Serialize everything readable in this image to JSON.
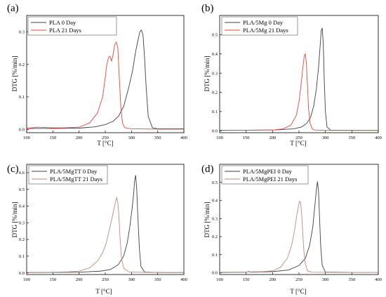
{
  "chart_data": [
    {
      "type": "line",
      "panel_label": "(a)",
      "xlabel": "T [°C]",
      "ylabel": "DTG [%/min]",
      "xlim": [
        100,
        400
      ],
      "ylim": [
        -0.01,
        0.35
      ],
      "xticks": [
        100,
        150,
        200,
        250,
        300,
        350,
        400
      ],
      "yticks": [
        0.0,
        0.1,
        0.2,
        0.3
      ],
      "legend_position": "top-left",
      "series": [
        {
          "name": "PLA 0 Day",
          "color": "#404040",
          "x": [
            100,
            150,
            200,
            230,
            250,
            265,
            275,
            285,
            295,
            302,
            308,
            312,
            316,
            319,
            322,
            325,
            328,
            332,
            340,
            350,
            400
          ],
          "y": [
            0.003,
            0.003,
            0.004,
            0.008,
            0.015,
            0.025,
            0.04,
            0.07,
            0.13,
            0.18,
            0.24,
            0.27,
            0.3,
            0.305,
            0.29,
            0.22,
            0.13,
            0.04,
            0.005,
            0.002,
            0.002
          ]
        },
        {
          "name": "PLA 21 Days",
          "color": "#e8473a",
          "x": [
            100,
            110,
            120,
            135,
            150,
            170,
            200,
            220,
            235,
            245,
            250,
            253,
            256,
            259,
            262,
            265,
            268,
            271,
            274,
            277,
            280,
            283,
            286,
            290,
            300,
            350,
            400
          ],
          "y": [
            0.004,
            0.005,
            0.007,
            0.006,
            0.005,
            0.005,
            0.007,
            0.02,
            0.05,
            0.1,
            0.16,
            0.2,
            0.22,
            0.225,
            0.21,
            0.23,
            0.26,
            0.268,
            0.25,
            0.15,
            0.06,
            0.02,
            0.008,
            0.004,
            0.002,
            0.001,
            0.001
          ]
        }
      ]
    },
    {
      "type": "line",
      "panel_label": "(b)",
      "xlabel": "T [°C]",
      "ylabel": "DTG [%/min]",
      "xlim": [
        100,
        400
      ],
      "ylim": [
        -0.01,
        0.6
      ],
      "xticks": [
        100,
        150,
        200,
        250,
        300,
        350,
        400
      ],
      "yticks": [
        0.0,
        0.1,
        0.2,
        0.3,
        0.4,
        0.5
      ],
      "legend_position": "top-left",
      "series": [
        {
          "name": "PLA/5Mg 0 Day",
          "color": "#404040",
          "x": [
            100,
            150,
            200,
            240,
            255,
            265,
            272,
            278,
            283,
            287,
            290,
            292,
            294,
            296,
            298,
            300,
            303,
            310,
            350,
            400
          ],
          "y": [
            0.002,
            0.003,
            0.004,
            0.01,
            0.02,
            0.04,
            0.07,
            0.13,
            0.22,
            0.33,
            0.44,
            0.52,
            0.535,
            0.45,
            0.25,
            0.1,
            0.02,
            0.003,
            0.002,
            0.002
          ]
        },
        {
          "name": "PLA/5Mg 21 Days",
          "color": "#e8473a",
          "x": [
            100,
            150,
            200,
            220,
            235,
            245,
            250,
            254,
            257,
            260,
            262,
            264,
            266,
            268,
            271,
            275,
            280,
            300,
            350,
            400
          ],
          "y": [
            0.003,
            0.003,
            0.004,
            0.01,
            0.03,
            0.08,
            0.15,
            0.24,
            0.32,
            0.39,
            0.4,
            0.35,
            0.24,
            0.12,
            0.04,
            0.01,
            0.004,
            0.002,
            0.002,
            0.002
          ]
        }
      ]
    },
    {
      "type": "line",
      "panel_label": "(c)",
      "xlabel": "T [°C]",
      "ylabel": "DTG [%/min]",
      "xlim": [
        100,
        400
      ],
      "ylim": [
        -0.01,
        0.65
      ],
      "xticks": [
        100,
        150,
        200,
        250,
        300,
        350,
        400
      ],
      "yticks": [
        0.0,
        0.1,
        0.2,
        0.3,
        0.4,
        0.5,
        0.6
      ],
      "legend_position": "top-left",
      "series": [
        {
          "name": "PLA/5MgTT 0 Day",
          "color": "#404040",
          "x": [
            100,
            150,
            200,
            240,
            260,
            275,
            285,
            292,
            297,
            301,
            304,
            306,
            308,
            310,
            312,
            315,
            318,
            325,
            350,
            400
          ],
          "y": [
            0.002,
            0.003,
            0.004,
            0.01,
            0.02,
            0.05,
            0.1,
            0.18,
            0.28,
            0.38,
            0.47,
            0.55,
            0.585,
            0.5,
            0.35,
            0.15,
            0.04,
            0.005,
            0.002,
            0.002
          ]
        },
        {
          "name": "PLA/5MgTT 21 Days",
          "color": "#c08a7a",
          "x": [
            100,
            150,
            180,
            200,
            220,
            235,
            245,
            252,
            258,
            263,
            267,
            270,
            272,
            274,
            276,
            278,
            281,
            285,
            295,
            350,
            400
          ],
          "y": [
            0.003,
            0.004,
            0.006,
            0.01,
            0.03,
            0.07,
            0.12,
            0.18,
            0.26,
            0.33,
            0.39,
            0.43,
            0.45,
            0.42,
            0.34,
            0.22,
            0.09,
            0.03,
            0.005,
            0.002,
            0.002
          ]
        }
      ]
    },
    {
      "type": "line",
      "panel_label": "(d)",
      "xlabel": "T [°C]",
      "ylabel": "DTG [%/min]",
      "xlim": [
        100,
        400
      ],
      "ylim": [
        -0.01,
        0.6
      ],
      "xticks": [
        100,
        150,
        200,
        250,
        300,
        350,
        400
      ],
      "yticks": [
        0.0,
        0.1,
        0.2,
        0.3,
        0.4,
        0.5
      ],
      "legend_position": "top-left",
      "series": [
        {
          "name": "PLA/5MgPEI 0 Day",
          "color": "#404040",
          "x": [
            100,
            150,
            155,
            160,
            200,
            230,
            250,
            262,
            270,
            276,
            280,
            283,
            285,
            287,
            289,
            291,
            294,
            300,
            350,
            400
          ],
          "y": [
            0.002,
            0.003,
            0.006,
            0.003,
            0.006,
            0.015,
            0.04,
            0.08,
            0.15,
            0.25,
            0.37,
            0.46,
            0.505,
            0.45,
            0.3,
            0.15,
            0.04,
            0.004,
            0.002,
            0.002
          ]
        },
        {
          "name": "PLA/5MgPEI 21 Days",
          "color": "#c08a7a",
          "x": [
            100,
            150,
            180,
            200,
            215,
            228,
            236,
            242,
            246,
            249,
            251,
            253,
            255,
            257,
            259,
            262,
            266,
            275,
            350,
            400
          ],
          "y": [
            0.003,
            0.004,
            0.006,
            0.01,
            0.03,
            0.08,
            0.15,
            0.24,
            0.32,
            0.37,
            0.395,
            0.39,
            0.33,
            0.23,
            0.13,
            0.05,
            0.01,
            0.003,
            0.002,
            0.002
          ]
        }
      ]
    }
  ]
}
